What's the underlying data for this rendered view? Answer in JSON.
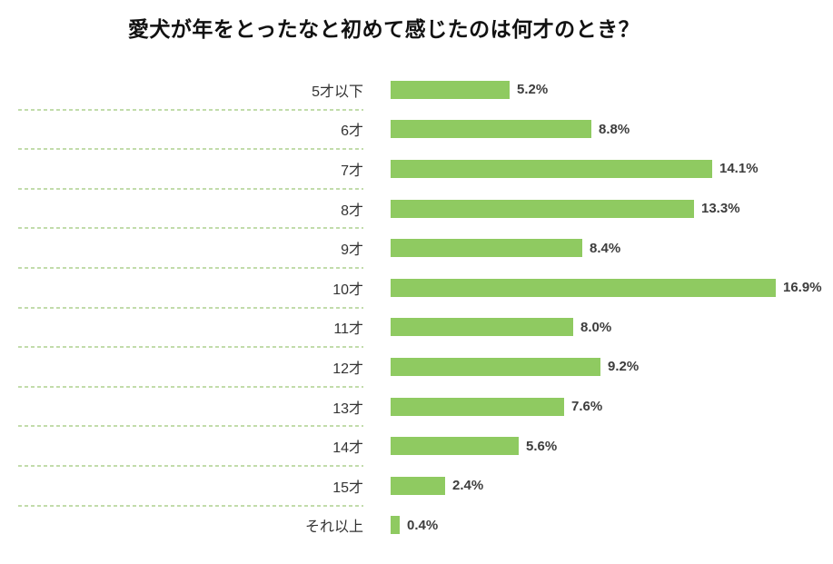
{
  "chart_data": {
    "type": "bar",
    "orientation": "horizontal",
    "title": "愛犬が年をとったなと初めて感じたのは何才のとき？",
    "categories": [
      "5才以下",
      "6才",
      "7才",
      "8才",
      "9才",
      "10才",
      "11才",
      "12才",
      "13才",
      "14才",
      "15才",
      "それ以上"
    ],
    "values": [
      5.2,
      8.8,
      14.1,
      13.3,
      8.4,
      16.9,
      8.0,
      9.2,
      7.6,
      5.6,
      2.4,
      0.4
    ],
    "value_labels": [
      "5.2%",
      "8.8%",
      "14.1%",
      "13.3%",
      "8.4%",
      "16.9%",
      "8.0%",
      "9.2%",
      "7.6%",
      "5.6%",
      "2.4%",
      "0.4%"
    ],
    "xlabel": "",
    "ylabel": "",
    "xlim": [
      0,
      17
    ],
    "bar_color": "#8fca61",
    "separator_color": "#c2dcab",
    "title_color": "#111111",
    "label_color": "#333333",
    "value_color": "#3d3d3d",
    "grid": "dashed-row-separators-under-labels",
    "legend": "none",
    "data_labels": "outside-end"
  }
}
